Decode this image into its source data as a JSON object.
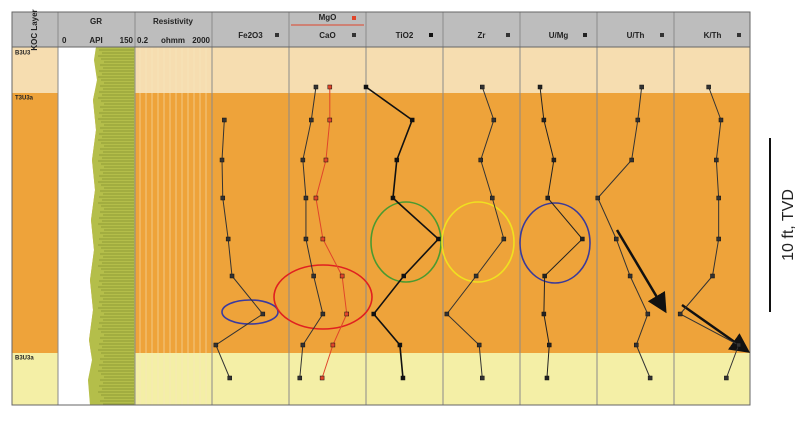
{
  "layer_header": "KOC Layer",
  "layers": [
    {
      "label": "B3U3"
    },
    {
      "label": "T3U3a"
    },
    {
      "label": "B3U3a"
    }
  ],
  "gr": {
    "title": "GR",
    "scale": [
      "0",
      "API",
      "150"
    ]
  },
  "resistivity": {
    "title": "Resistivity",
    "scale": [
      "0.2",
      "ohmm",
      "2000"
    ]
  },
  "tracks": [
    {
      "series": [
        {
          "name": "Fe2O3",
          "color": "#333333",
          "values": [
            null,
            16,
            13,
            14,
            21,
            26,
            66,
            5,
            23
          ]
        }
      ]
    },
    {
      "series": [
        {
          "name": "CaO",
          "color": "#333333",
          "values": [
            35,
            29,
            18,
            22,
            22,
            32,
            44,
            18,
            14
          ]
        },
        {
          "name": "MgO",
          "color": "#e0452a",
          "values": [
            53,
            53,
            48,
            35,
            44,
            69,
            75,
            57,
            43
          ]
        }
      ]
    },
    {
      "series": [
        {
          "name": "TiO2",
          "color": "#111111",
          "values": [
            0,
            60,
            40,
            35,
            94,
            49,
            10,
            44,
            48
          ]
        }
      ]
    },
    {
      "series": [
        {
          "name": "Zr",
          "color": "#333333",
          "values": [
            51,
            66,
            49,
            64,
            79,
            43,
            5,
            47,
            51
          ]
        }
      ]
    },
    {
      "series": [
        {
          "name": "U/Mg",
          "color": "#222222",
          "values": [
            26,
            31,
            44,
            36,
            81,
            32,
            31,
            38,
            35
          ]
        }
      ]
    },
    {
      "series": [
        {
          "name": "U/Th",
          "color": "#333333",
          "values": [
            58,
            53,
            45,
            1,
            25,
            43,
            66,
            51,
            69
          ]
        }
      ]
    },
    {
      "series": [
        {
          "name": "K/Th",
          "color": "#333333",
          "values": [
            45,
            61,
            55,
            58,
            58,
            50,
            8,
            84,
            68
          ]
        }
      ]
    }
  ],
  "depth_scale_label": "10 ft, TVD"
}
